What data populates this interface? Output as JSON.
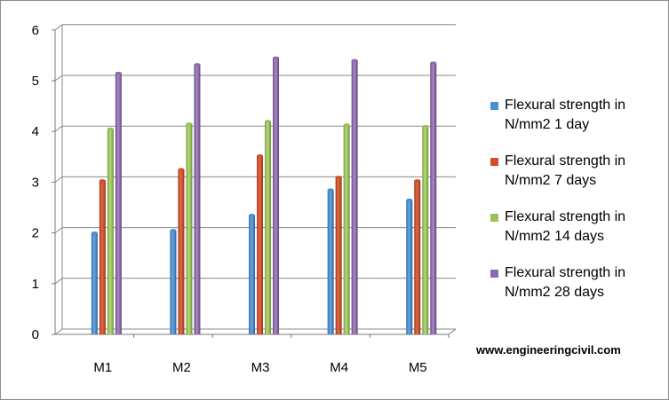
{
  "chart_data": {
    "type": "bar",
    "title": "",
    "xlabel": "",
    "ylabel": "",
    "categories": [
      "M1",
      "M2",
      "M3",
      "M4",
      "M5"
    ],
    "ylim": [
      0,
      6
    ],
    "yticks": [
      "0",
      "1",
      "2",
      "3",
      "4",
      "5",
      "6"
    ],
    "grid": true,
    "legend_position": "right",
    "series": [
      {
        "name": "Flexural strength  in N/mm2 1 day",
        "color": "#4a8fd0",
        "values": [
          2.0,
          2.05,
          2.35,
          2.85,
          2.65
        ]
      },
      {
        "name": "Flexural strength  in N/mm2 7 days",
        "color": "#d04f2c",
        "values": [
          3.03,
          3.25,
          3.52,
          3.1,
          3.03
        ]
      },
      {
        "name": "Flexural strength  in N/mm2 14 days",
        "color": "#9bc35a",
        "values": [
          4.05,
          4.15,
          4.2,
          4.13,
          4.1
        ]
      },
      {
        "name": "Flexural strength  in N/mm2 28 days",
        "color": "#8e6aab",
        "values": [
          5.15,
          5.32,
          5.45,
          5.4,
          5.35
        ]
      }
    ]
  },
  "legend": {
    "items": [
      {
        "line1": "Flexural strength  in",
        "line2": "N/mm2 1 day"
      },
      {
        "line1": "Flexural strength  in",
        "line2": "N/mm2 7 days"
      },
      {
        "line1": "Flexural strength  in",
        "line2": "N/mm2 14 days"
      },
      {
        "line1": "Flexural strength  in",
        "line2": "N/mm2 28 days"
      }
    ]
  },
  "watermark": "www.engineeringcivil.com"
}
